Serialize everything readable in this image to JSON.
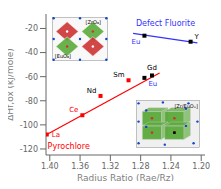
{
  "chart_data": {
    "type": "scatter",
    "xlabel": "Radius Ratio (Rae/Rz)",
    "ylabel": "ΔHf,ox (kJ/mole)",
    "xlim": [
      1.405,
      1.195
    ],
    "ylim": [
      -125,
      -8
    ],
    "xticks": [
      {
        "value": 1.4,
        "label": "1.40"
      },
      1.36,
      1.32,
      1.28,
      1.24,
      {
        "value": 1.2,
        "label": "1.20"
      }
    ],
    "yticks": [
      -120,
      -100,
      -80,
      -60,
      -40,
      -20
    ],
    "grid": false,
    "series": [
      {
        "type": "line",
        "color": "#FF0000",
        "x": [
          1.404,
          1.255
        ],
        "values": [
          -108,
          -57
        ]
      },
      {
        "type": "line",
        "color": "#3333FF",
        "x": [
          1.29,
          1.205
        ],
        "values": [
          -24,
          -32
        ]
      },
      {
        "type": "scatter",
        "marker": "square",
        "x": [
          1.404,
          1.357,
          1.333,
          1.296,
          1.275,
          1.265
        ],
        "values": [
          -108,
          -92,
          -76,
          -63,
          -61,
          -59
        ],
        "colors": [
          "#FF0000",
          "#FF0000",
          "#FF0000",
          "#FF0000",
          "#000000",
          "#000000"
        ],
        "labels": [
          "La",
          "Ce",
          "Nd",
          "Sm",
          "Eu",
          "Gd"
        ],
        "label_colors": [
          "#FF0000",
          "#FF0000",
          "#000000",
          "#000000",
          "#3333FF",
          "#000000"
        ]
      },
      {
        "type": "scatter",
        "marker": "square",
        "x": [
          1.275,
          1.214
        ],
        "values": [
          -26,
          -31
        ],
        "colors": [
          "#000000",
          "#000000"
        ],
        "labels": [
          "Eu",
          "Y"
        ],
        "label_colors": [
          "#3333FF",
          "#000000"
        ]
      }
    ],
    "annotations": [
      {
        "text": "Defect Fluorite",
        "x": 1.208,
        "y": -16,
        "color": "#3333FF"
      },
      {
        "text": "Pyrochlore",
        "x": 1.375,
        "y": -118,
        "color": "#FF0000"
      }
    ],
    "insets": [
      {
        "labels": [
          "[ZrO₈]",
          "[EuO₈]"
        ]
      },
      {
        "labels": [
          "[Zr/EuOₓ]"
        ]
      }
    ]
  }
}
